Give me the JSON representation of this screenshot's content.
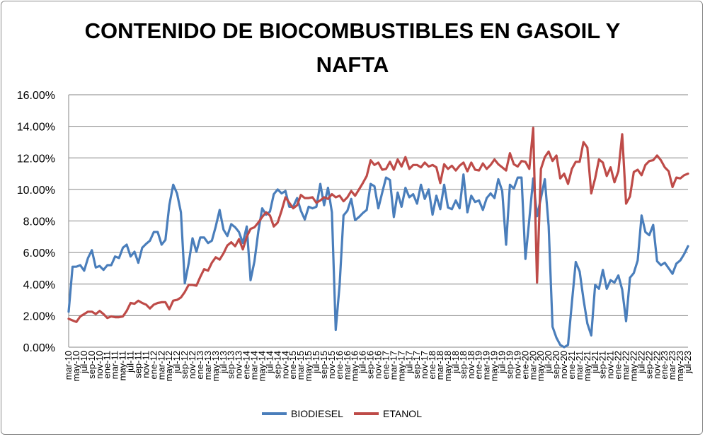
{
  "chart_data": {
    "type": "line",
    "title": "CONTENIDO DE BIOCOMBUSTIBLES EN GASOIL Y NAFTA",
    "title_lines": [
      "CONTENIDO DE BIOCOMBUSTIBLES EN GASOIL Y",
      "NAFTA"
    ],
    "xlabel": "",
    "ylabel": "",
    "ylim": [
      0,
      16
    ],
    "y_ticks": [
      "0.00%",
      "2.00%",
      "4.00%",
      "6.00%",
      "8.00%",
      "10.00%",
      "12.00%",
      "14.00%",
      "16.00%"
    ],
    "y_tick_values": [
      0,
      2,
      4,
      6,
      8,
      10,
      12,
      14,
      16
    ],
    "grid": true,
    "legend_position": "bottom",
    "x_label_every": 2,
    "categories": [
      "mar-10",
      "abr-10",
      "may-10",
      "jun-10",
      "jul-10",
      "ago-10",
      "sep-10",
      "oct-10",
      "nov-10",
      "dic-10",
      "ene-11",
      "feb-11",
      "mar-11",
      "abr-11",
      "may-11",
      "jun-11",
      "jul-11",
      "ago-11",
      "sep-11",
      "oct-11",
      "nov-11",
      "dic-11",
      "ene-12",
      "feb-12",
      "mar-12",
      "abr-12",
      "may-12",
      "jun-12",
      "jul-12",
      "ago-12",
      "sep-12",
      "oct-12",
      "nov-12",
      "dic-12",
      "ene-13",
      "feb-13",
      "mar-13",
      "abr-13",
      "may-13",
      "jun-13",
      "jul-13",
      "ago-13",
      "sep-13",
      "oct-13",
      "nov-13",
      "dic-13",
      "ene-14",
      "feb-14",
      "mar-14",
      "abr-14",
      "may-14",
      "jun-14",
      "jul-14",
      "ago-14",
      "sep-14",
      "oct-14",
      "nov-14",
      "dic-14",
      "ene-15",
      "feb-15",
      "mar-15",
      "abr-15",
      "may-15",
      "jun-15",
      "jul-15",
      "ago-15",
      "sep-15",
      "oct-15",
      "nov-15",
      "dic-15",
      "ene-16",
      "feb-16",
      "mar-16",
      "abr-16",
      "may-16",
      "jun-16",
      "jul-16",
      "ago-16",
      "sep-16",
      "oct-16",
      "nov-16",
      "dic-16",
      "ene-17",
      "feb-17",
      "mar-17",
      "abr-17",
      "may-17",
      "jun-17",
      "jul-17",
      "ago-17",
      "sep-17",
      "oct-17",
      "nov-17",
      "dic-17",
      "ene-18",
      "feb-18",
      "mar-18",
      "abr-18",
      "may-18",
      "jun-18",
      "jul-18",
      "ago-18",
      "sep-18",
      "oct-18",
      "nov-18",
      "dic-18",
      "ene-19",
      "feb-19",
      "mar-19",
      "abr-19",
      "may-19",
      "jun-19",
      "jul-19",
      "ago-19",
      "sep-19",
      "oct-19",
      "nov-19",
      "dic-19",
      "ene-20",
      "feb-20",
      "mar-20",
      "abr-20",
      "may-20",
      "jun-20",
      "jul-20",
      "ago-20",
      "sep-20",
      "oct-20",
      "nov-20",
      "dic-20",
      "ene-21",
      "feb-21",
      "mar-21",
      "abr-21",
      "may-21",
      "jun-21",
      "jul-21",
      "ago-21",
      "sep-21",
      "oct-21",
      "nov-21",
      "dic-21",
      "ene-22",
      "feb-22",
      "mar-22",
      "abr-22",
      "may-22",
      "jun-22",
      "jul-22",
      "ago-22",
      "sep-22",
      "oct-22",
      "nov-22",
      "dic-22",
      "ene-23",
      "feb-23",
      "mar-23",
      "abr-23",
      "may-23",
      "jun-23",
      "jul-23"
    ],
    "series": [
      {
        "name": "BIODIESEL",
        "color": "#4a7ebb",
        "values": [
          2.25,
          5.1,
          5.1,
          5.2,
          4.85,
          5.65,
          6.15,
          5.05,
          5.15,
          4.9,
          5.2,
          5.2,
          5.75,
          5.65,
          6.3,
          6.5,
          5.75,
          6.05,
          5.35,
          6.3,
          6.55,
          6.75,
          7.3,
          7.3,
          6.5,
          6.8,
          9.0,
          10.3,
          9.75,
          8.55,
          4.05,
          5.3,
          6.9,
          6.05,
          6.95,
          6.95,
          6.6,
          6.75,
          7.65,
          8.7,
          7.45,
          7.05,
          7.8,
          7.6,
          7.3,
          6.6,
          7.65,
          4.25,
          5.45,
          7.35,
          8.8,
          8.4,
          8.6,
          9.7,
          10.0,
          9.75,
          9.9,
          8.9,
          8.9,
          9.45,
          8.65,
          8.1,
          8.9,
          8.8,
          8.9,
          10.35,
          9.0,
          10.1,
          8.55,
          1.1,
          3.95,
          8.35,
          8.65,
          9.4,
          8.05,
          8.25,
          8.5,
          8.7,
          10.35,
          10.2,
          8.8,
          9.8,
          10.75,
          10.6,
          8.25,
          9.8,
          8.9,
          10.1,
          9.5,
          9.7,
          9.1,
          10.3,
          9.4,
          10.0,
          8.4,
          9.6,
          8.75,
          10.3,
          8.85,
          8.75,
          9.3,
          8.8,
          10.95,
          8.55,
          9.6,
          9.2,
          9.3,
          8.7,
          9.45,
          9.75,
          9.45,
          10.65,
          9.9,
          6.5,
          10.3,
          10.05,
          10.75,
          10.75,
          5.6,
          8.1,
          10.7,
          8.3,
          9.45,
          10.65,
          7.7,
          1.3,
          0.6,
          0.15,
          0.0,
          0.15,
          2.8,
          5.4,
          4.8,
          3.05,
          1.5,
          0.75,
          3.95,
          3.7,
          4.9,
          3.7,
          4.25,
          4.1,
          4.55,
          3.65,
          1.65,
          4.4,
          4.7,
          5.5,
          8.35,
          7.3,
          7.1,
          7.75,
          5.45,
          5.2,
          5.35,
          5.0,
          4.65,
          5.3,
          5.5,
          5.9,
          6.4
        ]
      },
      {
        "name": "ETANOL",
        "color": "#be4b48",
        "values": [
          1.8,
          1.7,
          1.6,
          1.95,
          2.1,
          2.25,
          2.25,
          2.1,
          2.3,
          2.1,
          1.85,
          1.95,
          1.9,
          1.9,
          1.95,
          2.3,
          2.8,
          2.75,
          2.95,
          2.8,
          2.7,
          2.45,
          2.7,
          2.8,
          2.85,
          2.85,
          2.4,
          2.95,
          3.0,
          3.15,
          3.5,
          3.95,
          3.95,
          3.9,
          4.45,
          4.95,
          4.85,
          5.35,
          5.7,
          5.55,
          5.95,
          6.45,
          6.65,
          6.4,
          6.85,
          6.2,
          7.0,
          7.5,
          7.6,
          7.9,
          8.25,
          8.55,
          8.35,
          7.65,
          7.9,
          8.65,
          9.5,
          9.15,
          8.8,
          9.0,
          9.65,
          9.45,
          9.45,
          9.5,
          9.15,
          9.3,
          9.5,
          9.4,
          9.7,
          9.5,
          9.6,
          9.25,
          9.5,
          9.9,
          9.6,
          10.0,
          10.4,
          10.85,
          11.85,
          11.55,
          11.7,
          11.25,
          11.3,
          11.75,
          11.25,
          11.9,
          11.45,
          12.05,
          11.3,
          11.55,
          11.55,
          11.4,
          11.7,
          11.45,
          11.55,
          11.4,
          10.4,
          11.6,
          11.3,
          11.5,
          11.2,
          11.5,
          11.7,
          11.15,
          11.7,
          11.25,
          11.2,
          11.65,
          11.3,
          11.55,
          11.9,
          11.6,
          11.4,
          11.2,
          12.3,
          11.6,
          11.45,
          11.8,
          11.75,
          11.3,
          13.9,
          4.1,
          11.3,
          12.05,
          12.4,
          11.8,
          12.15,
          10.7,
          11.0,
          10.35,
          11.3,
          11.75,
          11.75,
          13.0,
          12.65,
          9.75,
          10.7,
          11.9,
          11.7,
          10.85,
          11.4,
          10.45,
          11.15,
          13.5,
          9.1,
          9.55,
          11.1,
          11.25,
          10.9,
          11.55,
          11.8,
          11.85,
          12.15,
          11.85,
          11.4,
          11.15,
          10.15,
          10.75,
          10.7,
          10.9,
          11.0
        ]
      }
    ]
  }
}
